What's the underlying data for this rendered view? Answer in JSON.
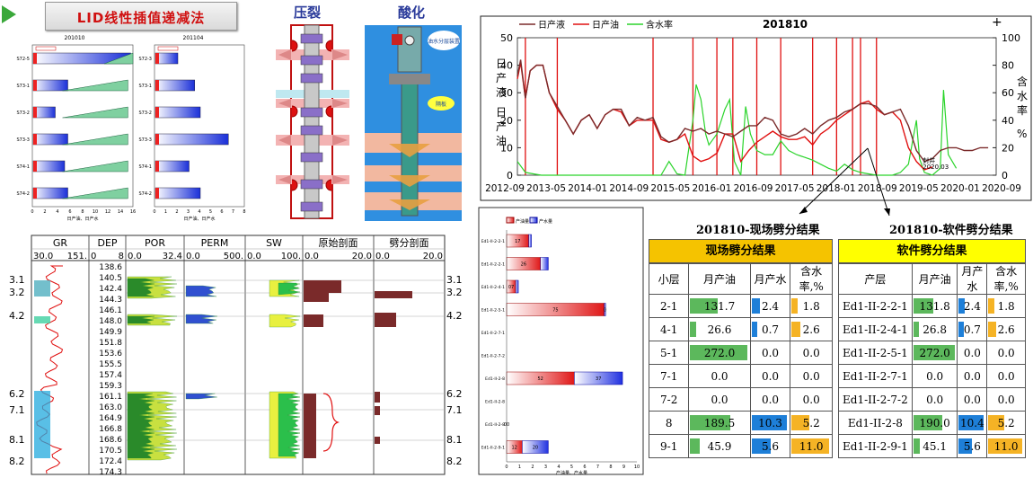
{
  "banner": {
    "title": "LID线性插值递减法"
  },
  "mini_charts": {
    "left_title": "201010",
    "right_title": "201104",
    "left_rows": [
      "S72-5",
      "S73-1",
      "S73-2",
      "S73-3",
      "S74-1",
      "S74-2"
    ],
    "right_rows": [
      "S72-3",
      "S73-1",
      "S73-2",
      "S73-3",
      "S74-1",
      "S74-2"
    ],
    "left_xticks": [
      "0",
      "2",
      "4",
      "6",
      "8",
      "10",
      "12",
      "14",
      "16"
    ],
    "right_xticks": [
      "0",
      "1",
      "2",
      "3",
      "4",
      "5",
      "6",
      "7",
      "8"
    ],
    "left_xlabel": "日产油、日产水",
    "right_xlabel": "日产油、日产水",
    "left_bars": [
      15.5,
      5.5,
      3.5,
      5.5,
      5.0,
      5.5
    ],
    "right_bars": [
      2.0,
      3.5,
      4.0,
      6.5,
      3.0,
      4.0
    ],
    "wedge_rows": [
      1,
      2,
      3,
      4,
      5
    ]
  },
  "diagrams": {
    "fracture_title": "压裂",
    "acid_title": "酸化",
    "acid_bubble1": "油水分层装置",
    "acid_bubble2": "隔板"
  },
  "log": {
    "headers": [
      "GR",
      "DEP",
      "POR",
      "PERM",
      "SW",
      "原始剖面",
      "劈分剖面"
    ],
    "scales": [
      [
        "30.0",
        "151."
      ],
      [
        "0",
        "8"
      ],
      [
        "0.0",
        "32.4"
      ],
      [
        "0.0",
        "500."
      ],
      [
        "0.0",
        "100."
      ],
      [
        "0.0",
        "20.0"
      ],
      [
        "0.0",
        "20.0"
      ]
    ],
    "depths": [
      "138.6",
      "140.5",
      "142.4",
      "144.3",
      "146.1",
      "148.0",
      "149.9",
      "151.8",
      "153.6",
      "155.5",
      "157.4",
      "159.3",
      "161.1",
      "163.0",
      "164.9",
      "166.8",
      "168.6",
      "170.5",
      "172.4",
      "174.3"
    ],
    "left_labels": [
      "3.1",
      "3.2",
      "4.2",
      "6.2",
      "7.1",
      "8.1",
      "8.2"
    ],
    "right_labels": [
      "3.1",
      "3.2",
      "4.2",
      "6.2",
      "7.1",
      "8.1",
      "8.2"
    ]
  },
  "split_bar_chart": {
    "legend": [
      "产油量",
      "产水量"
    ],
    "rows": [
      "Ed1-II-2-2-1",
      "Ed1-II-2-2-1",
      "Ed1-II-2-4-1",
      "Ed1-II-2-5-1",
      "Ed1-II-2-7-1",
      "Ed1-II-2-7-2",
      "Ed1-II-2-8",
      "Ed1-II-2-8",
      "Ed1-II-2-8",
      "Ed1-II-2-9-1"
    ],
    "oil": [
      1.7,
      2.6,
      0.7,
      7.5,
      0,
      0,
      5.2,
      0,
      0,
      1.2
    ],
    "water": [
      0.2,
      0.6,
      0.2,
      0.1,
      0,
      0,
      3.7,
      0,
      0,
      2.0
    ],
    "oil_labels": [
      "17",
      "26",
      "07",
      "75",
      "",
      "",
      "52",
      "",
      "00",
      "12"
    ],
    "water_labels": [
      "",
      "",
      "",
      "0",
      "",
      "",
      "37",
      "",
      "",
      "20"
    ],
    "xticks": [
      "0",
      "1",
      "2",
      "3",
      "4",
      "5",
      "6",
      "7",
      "8",
      "9",
      "10"
    ],
    "xlabel": "产油量、产水量"
  },
  "chart_data": {
    "type": "line",
    "title": "201810",
    "legend": [
      "日产液",
      "日产油",
      "含水率"
    ],
    "ylabel": "日产液\n日产油",
    "y2label": "含水率\n%",
    "ylim": [
      0,
      50
    ],
    "y2lim": [
      0,
      100
    ],
    "yticks": [
      "0",
      "10",
      "20",
      "30",
      "40",
      "50"
    ],
    "y2ticks": [
      "0",
      "20",
      "40",
      "60",
      "80",
      "100"
    ],
    "xticks": [
      "2012-09",
      "2013-05",
      "2014-01",
      "2014-09",
      "2015-05",
      "2016-01",
      "2016-09",
      "2017-05",
      "2018-01",
      "2018-09",
      "2019-05",
      "2020-01",
      "2020-09"
    ],
    "annotation": "封井\n2020.03",
    "liquid": [
      [
        0,
        36
      ],
      [
        0.2,
        42
      ],
      [
        0.5,
        28
      ],
      [
        0.8,
        38
      ],
      [
        1.2,
        40
      ],
      [
        1.6,
        40
      ],
      [
        2.0,
        30
      ],
      [
        2.5,
        25
      ],
      [
        3.0,
        20
      ],
      [
        3.5,
        15
      ],
      [
        4.0,
        20
      ],
      [
        4.5,
        22
      ],
      [
        5.0,
        17
      ],
      [
        5.5,
        22
      ],
      [
        6.0,
        24
      ],
      [
        6.5,
        24
      ],
      [
        7.0,
        18
      ],
      [
        7.5,
        21
      ],
      [
        8.0,
        20
      ],
      [
        8.5,
        21
      ],
      [
        9.0,
        14
      ],
      [
        9.5,
        12
      ],
      [
        10.0,
        13
      ],
      [
        10.5,
        17
      ],
      [
        11.0,
        16
      ],
      [
        11.5,
        17
      ],
      [
        12.0,
        15
      ],
      [
        12.5,
        16
      ],
      [
        13.0,
        15
      ],
      [
        13.5,
        14
      ],
      [
        14.0,
        16
      ],
      [
        14.5,
        18
      ],
      [
        15.0,
        18
      ],
      [
        15.5,
        21
      ],
      [
        16.0,
        20
      ],
      [
        16.5,
        15
      ],
      [
        17.0,
        14
      ],
      [
        17.5,
        15
      ],
      [
        18.0,
        17
      ],
      [
        18.5,
        15
      ],
      [
        19.0,
        18
      ],
      [
        19.5,
        20
      ],
      [
        20.0,
        21
      ],
      [
        20.5,
        23
      ],
      [
        21.0,
        24
      ],
      [
        21.5,
        26
      ],
      [
        22.0,
        26
      ],
      [
        22.5,
        25
      ],
      [
        23.0,
        22
      ],
      [
        23.5,
        23
      ],
      [
        24.0,
        24
      ],
      [
        24.5,
        18
      ],
      [
        25.0,
        9
      ],
      [
        25.5,
        5
      ],
      [
        26.0,
        6
      ],
      [
        26.5,
        9
      ],
      [
        27.0,
        10
      ],
      [
        27.5,
        10
      ],
      [
        28.0,
        9
      ],
      [
        28.5,
        9
      ],
      [
        29.0,
        10
      ],
      [
        29.5,
        10
      ]
    ],
    "oil": [
      [
        0,
        35
      ],
      [
        0.2,
        41
      ],
      [
        0.5,
        28
      ],
      [
        0.8,
        38
      ],
      [
        1.2,
        40
      ],
      [
        1.6,
        40
      ],
      [
        2.0,
        30
      ],
      [
        2.5,
        24
      ],
      [
        3.0,
        20
      ],
      [
        3.5,
        15
      ],
      [
        4.0,
        20
      ],
      [
        4.5,
        22
      ],
      [
        5.0,
        17
      ],
      [
        5.5,
        22
      ],
      [
        6.0,
        24
      ],
      [
        6.5,
        23
      ],
      [
        7.0,
        18
      ],
      [
        7.5,
        20
      ],
      [
        8.0,
        20
      ],
      [
        8.5,
        20
      ],
      [
        9.0,
        13
      ],
      [
        9.5,
        12
      ],
      [
        10.0,
        13
      ],
      [
        10.5,
        15
      ],
      [
        11.0,
        7
      ],
      [
        11.5,
        5
      ],
      [
        12.0,
        6
      ],
      [
        12.5,
        8
      ],
      [
        13.0,
        15
      ],
      [
        13.5,
        15
      ],
      [
        14.0,
        5
      ],
      [
        14.5,
        9
      ],
      [
        15.0,
        12
      ],
      [
        15.5,
        14
      ],
      [
        16.0,
        16
      ],
      [
        16.5,
        14
      ],
      [
        17.0,
        13
      ],
      [
        17.5,
        13
      ],
      [
        18.0,
        14
      ],
      [
        18.5,
        11
      ],
      [
        19.0,
        15
      ],
      [
        19.5,
        17
      ],
      [
        20.0,
        20
      ],
      [
        20.5,
        22
      ],
      [
        21.0,
        24
      ],
      [
        21.5,
        26
      ],
      [
        22.0,
        27
      ],
      [
        22.5,
        24
      ],
      [
        23.0,
        22
      ],
      [
        23.5,
        23
      ],
      [
        24.0,
        20
      ],
      [
        24.5,
        10
      ],
      [
        25.0,
        5
      ],
      [
        25.5,
        2
      ],
      [
        26.0,
        3
      ]
    ],
    "watercut": [
      [
        0,
        10
      ],
      [
        0.5,
        2
      ],
      [
        1.0,
        1
      ],
      [
        1.5,
        0
      ],
      [
        2.0,
        0
      ],
      [
        3.0,
        0
      ],
      [
        4.0,
        0
      ],
      [
        5.0,
        0
      ],
      [
        6.0,
        0
      ],
      [
        7.0,
        0
      ],
      [
        8.0,
        0
      ],
      [
        9.0,
        0
      ],
      [
        9.5,
        10
      ],
      [
        10.0,
        1
      ],
      [
        10.5,
        0
      ],
      [
        11.0,
        40
      ],
      [
        11.2,
        66
      ],
      [
        11.5,
        55
      ],
      [
        11.8,
        30
      ],
      [
        12.0,
        22
      ],
      [
        12.5,
        30
      ],
      [
        13.0,
        48
      ],
      [
        13.3,
        55
      ],
      [
        13.6,
        10
      ],
      [
        14.0,
        0
      ],
      [
        14.3,
        50
      ],
      [
        14.6,
        30
      ],
      [
        15.0,
        18
      ],
      [
        15.5,
        15
      ],
      [
        16.0,
        15
      ],
      [
        16.5,
        25
      ],
      [
        17.0,
        18
      ],
      [
        17.5,
        15
      ],
      [
        18.0,
        13
      ],
      [
        18.5,
        11
      ],
      [
        19.0,
        8
      ],
      [
        19.5,
        5
      ],
      [
        20.0,
        3
      ],
      [
        20.5,
        8
      ],
      [
        21.0,
        4
      ],
      [
        21.5,
        2
      ],
      [
        22.0,
        1
      ],
      [
        22.5,
        0
      ],
      [
        23.0,
        0
      ],
      [
        23.5,
        0
      ],
      [
        24.0,
        2
      ],
      [
        24.5,
        8
      ],
      [
        25.0,
        40
      ],
      [
        25.2,
        12
      ],
      [
        25.5,
        2
      ],
      [
        26.0,
        0
      ],
      [
        26.5,
        5
      ],
      [
        26.7,
        62
      ],
      [
        27.0,
        15
      ],
      [
        27.5,
        5
      ]
    ],
    "vlines": [
      0.5,
      2.5,
      8.5,
      11.0,
      12.5,
      13.5,
      15.0,
      16.5,
      18.5,
      20.0,
      21.0,
      21.5,
      22.5
    ]
  },
  "results": {
    "title_left": "201810-现场劈分结果",
    "title_right": "201810-软件劈分结果",
    "left": {
      "banner": "现场劈分结果",
      "headers": [
        "小层",
        "月产油",
        "月产水",
        "含水率,%"
      ],
      "rows": [
        [
          "2-1",
          "131.7",
          "2.4",
          "1.8"
        ],
        [
          "4-1",
          "26.6",
          "0.7",
          "2.6"
        ],
        [
          "5-1",
          "272.0",
          "0.0",
          "0.0"
        ],
        [
          "7-1",
          "0.0",
          "0.0",
          "0.0"
        ],
        [
          "7-2",
          "0.0",
          "0.0",
          "0.0"
        ],
        [
          "8",
          "189.5",
          "10.3",
          "5.2"
        ],
        [
          "9-1",
          "45.9",
          "5.6",
          "11.0"
        ]
      ]
    },
    "right": {
      "banner": "软件劈分结果",
      "headers": [
        "产层",
        "月产油",
        "月产水",
        "含水率,%"
      ],
      "rows": [
        [
          "Ed1-II-2-2-1",
          "131.8",
          "2.4",
          "1.8"
        ],
        [
          "Ed1-II-2-4-1",
          "26.8",
          "0.7",
          "2.6"
        ],
        [
          "Ed1-II-2-5-1",
          "272.0",
          "0.0",
          "0.0"
        ],
        [
          "Ed1-II-2-7-1",
          "0.0",
          "0.0",
          "0.0"
        ],
        [
          "Ed1-II-2-7-2",
          "0.0",
          "0.0",
          "0.0"
        ],
        [
          "Ed1-II-2-8",
          "190.0",
          "10.4",
          "5.2"
        ],
        [
          "Ed1-II-2-9-1",
          "45.1",
          "5.6",
          "11.0"
        ]
      ]
    },
    "colors": {
      "oil": "#5cb85c",
      "water": "#1e7fd8",
      "cut": "#f5b325",
      "banner": "#f5c300",
      "banner2": "#ffff00"
    }
  }
}
